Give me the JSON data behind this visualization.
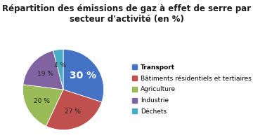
{
  "title": "Répartition des émissions de gaz à effet de serre par\nsecteur d'activité (en %)",
  "slices": [
    30,
    27,
    20,
    19,
    4
  ],
  "pct_labels": [
    "30 %",
    "27 %",
    "20 %",
    "19 %",
    "4 %"
  ],
  "colors": [
    "#4472C4",
    "#C0504D",
    "#9BBB59",
    "#8064A2",
    "#4BACC6"
  ],
  "legend_labels": [
    "Transport",
    "Bâtiments résidentiels et tertiaires",
    "Agriculture",
    "Industrie",
    "Déchets"
  ],
  "startangle": 90,
  "background_color": "#FFFFFF",
  "title_fontsize": 8.5,
  "legend_fontsize": 6.5
}
